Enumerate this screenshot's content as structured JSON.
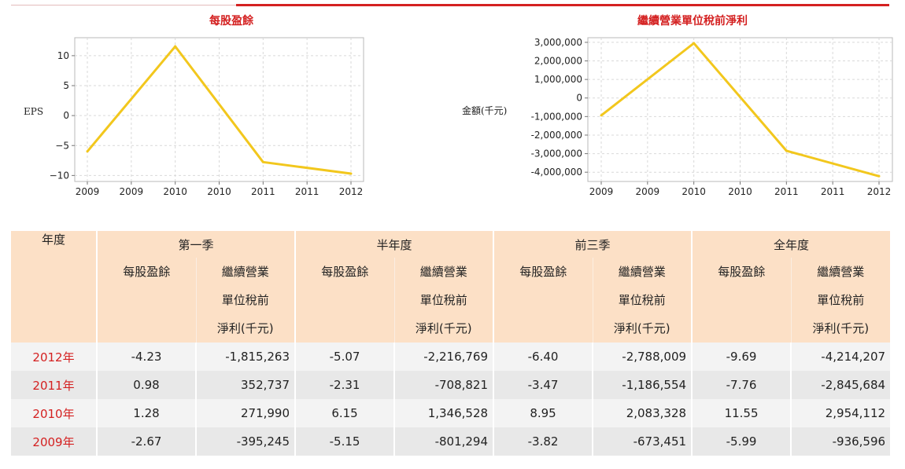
{
  "chart_data": [
    {
      "type": "line",
      "title": "每股盈餘",
      "ylabel": "EPS",
      "categories": [
        "2009",
        "2009",
        "2010",
        "2010",
        "2011",
        "2011",
        "2012"
      ],
      "x": [
        2009,
        2010,
        2011,
        2012
      ],
      "y": [
        -5.99,
        11.55,
        -7.76,
        -9.69
      ],
      "ylim": [
        -11,
        13
      ],
      "yticks": [
        10,
        5,
        0,
        -5,
        -10
      ],
      "ytick_labels": [
        "10",
        "5",
        "0",
        "−5",
        "−10"
      ],
      "grid": true,
      "line_color": "#f2c71d"
    },
    {
      "type": "line",
      "title": "繼續營業單位稅前淨利",
      "ylabel": "金額(千元)",
      "categories": [
        "2009",
        "2009",
        "2010",
        "2010",
        "2011",
        "2011",
        "2012"
      ],
      "x": [
        2009,
        2010,
        2011,
        2012
      ],
      "y": [
        -936596,
        2954112,
        -2845684,
        -4214207
      ],
      "ylim": [
        -4500000,
        3250000
      ],
      "yticks": [
        3000000,
        2000000,
        1000000,
        0,
        -1000000,
        -2000000,
        -3000000,
        -4000000
      ],
      "ytick_labels": [
        "3,000,000",
        "2,000,000",
        "1,000,000",
        "0",
        "-1,000,000",
        "-2,000,000",
        "-3,000,000",
        "-4,000,000"
      ],
      "grid": true,
      "line_color": "#f2c71d"
    }
  ],
  "table": {
    "year_header": "年度",
    "groups": [
      "第一季",
      "半年度",
      "前三季",
      "全年度"
    ],
    "sub_eps": "每股盈餘",
    "sub_income_lines": [
      "繼續營業",
      "單位稅前",
      "淨利(千元)"
    ],
    "rows": [
      {
        "year": "2012年",
        "cells": [
          "-4.23",
          "-1,815,263",
          "-5.07",
          "-2,216,769",
          "-6.40",
          "-2,788,009",
          "-9.69",
          "-4,214,207"
        ]
      },
      {
        "year": "2011年",
        "cells": [
          "0.98",
          "352,737",
          "-2.31",
          "-708,821",
          "-3.47",
          "-1,186,554",
          "-7.76",
          "-2,845,684"
        ]
      },
      {
        "year": "2010年",
        "cells": [
          "1.28",
          "271,990",
          "6.15",
          "1,346,528",
          "8.95",
          "2,083,328",
          "11.55",
          "2,954,112"
        ]
      },
      {
        "year": "2009年",
        "cells": [
          "-2.67",
          "-395,245",
          "-5.15",
          "-801,294",
          "-3.82",
          "-673,451",
          "-5.99",
          "-936,596"
        ]
      }
    ]
  },
  "colors": {
    "accent": "#d42121",
    "header_bg": "#fce0c6",
    "line": "#f2c71d"
  }
}
